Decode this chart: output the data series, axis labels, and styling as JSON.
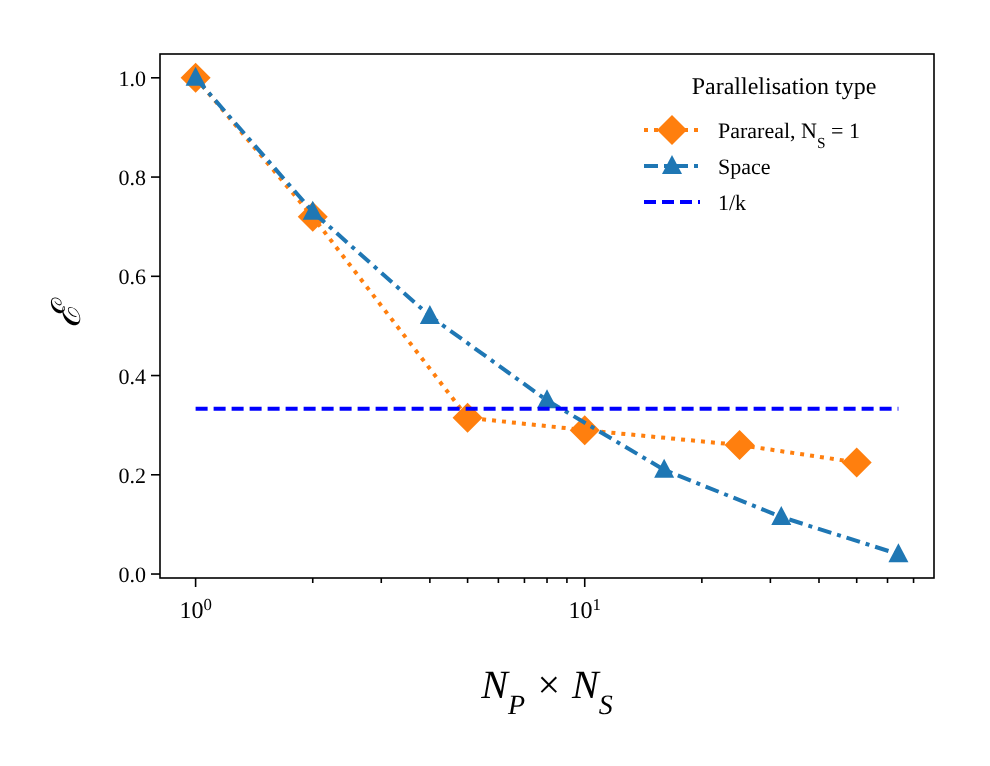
{
  "chart_data": {
    "type": "line",
    "xlabel": "N$_{P}$ × N$_{S}$",
    "ylabel": "ℰ",
    "legend_title": "Parallelisation type",
    "legend": "top right",
    "log": "x",
    "xlim": [
      0.81,
      79
    ],
    "ylim": [
      -0.008,
      1.048
    ],
    "xticks": [
      {
        "value": 1,
        "label": "10$^{0}$"
      },
      {
        "value": 2,
        "label": null
      },
      {
        "value": 3,
        "label": null
      },
      {
        "value": 4,
        "label": null
      },
      {
        "value": 5,
        "label": null
      },
      {
        "value": 6,
        "label": null
      },
      {
        "value": 7,
        "label": null
      },
      {
        "value": 8,
        "label": null
      },
      {
        "value": 9,
        "label": null
      },
      {
        "value": 10,
        "label": "10$^{1}$"
      },
      {
        "value": 20,
        "label": null
      },
      {
        "value": 30,
        "label": null
      },
      {
        "value": 40,
        "label": null
      },
      {
        "value": 50,
        "label": null
      },
      {
        "value": 60,
        "label": null
      },
      {
        "value": 70,
        "label": null
      }
    ],
    "yticks": [
      {
        "value": 0,
        "label": "0.0"
      },
      {
        "value": 0.2,
        "label": "0.2"
      },
      {
        "value": 0.4,
        "label": "0.4"
      },
      {
        "value": 0.6,
        "label": "0.6"
      },
      {
        "value": 0.8,
        "label": "0.8"
      },
      {
        "value": 1,
        "label": "1.0"
      }
    ],
    "series": [
      {
        "name": "Parareal, N$_{S}$ = 1",
        "color": "#ff7f0e",
        "marker": "diamond",
        "line_style": "dotted",
        "x": [
          1,
          2,
          5,
          10,
          25,
          50
        ],
        "values": [
          1.0,
          0.72,
          0.315,
          0.29,
          0.26,
          0.225
        ]
      },
      {
        "name": "Space",
        "color": "#1f77b4",
        "marker": "triangle",
        "line_style": "dashdot",
        "x": [
          1,
          2,
          4,
          8,
          16,
          32,
          64
        ],
        "values": [
          1.0,
          0.73,
          0.52,
          0.35,
          0.21,
          0.115,
          0.04
        ]
      },
      {
        "name": "1/k",
        "color": "#0000ff",
        "marker": "none",
        "line_style": "dashed",
        "x": [
          1,
          64
        ],
        "values": [
          0.333,
          0.333
        ]
      }
    ]
  }
}
